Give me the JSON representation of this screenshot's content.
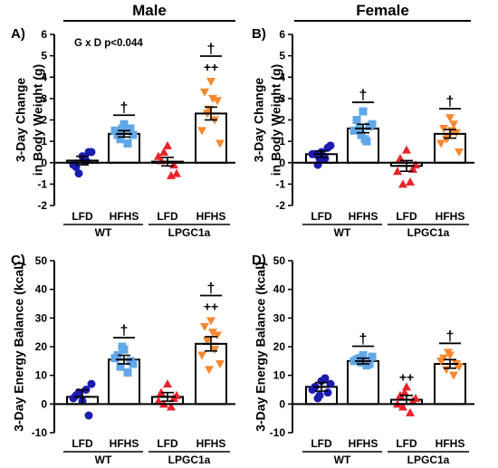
{
  "header": {
    "male": "Male",
    "female": "Female"
  },
  "style": {
    "colors": {
      "wt_lfd": "#1b1bb0",
      "wt_hfhs": "#62a8e8",
      "lpgc_lfd": "#e8232a",
      "lpgc_hfhs": "#f7882f"
    },
    "markers": {
      "wt_lfd": "circle",
      "wt_hfhs": "square",
      "lpgc_lfd": "triangle-up",
      "lpgc_hfhs": "triangle-down"
    }
  },
  "chart_data": [
    {
      "panel": "A)",
      "type": "bar",
      "ylabel": [
        "3-Day Change",
        "in Body Weight (g)"
      ],
      "ylim": [
        -2,
        6
      ],
      "yticks": [
        -2,
        -1,
        0,
        1,
        2,
        3,
        4,
        5,
        6
      ],
      "categories": [
        "LFD",
        "HFHS",
        "LFD",
        "HFHS"
      ],
      "groups": [
        "WT",
        "LPGC1a"
      ],
      "annotation": "G x D p<0.044",
      "values": [
        0.1,
        1.35,
        0.05,
        2.3
      ],
      "errors": [
        0.2,
        0.15,
        0.2,
        0.3
      ],
      "points": [
        [
          0.3,
          -0.2,
          0.5,
          -0.5,
          0.1,
          -0.1,
          0.5
        ],
        [
          1.8,
          1.3,
          1.6,
          1.1,
          0.9,
          1.5,
          1.3,
          1.6
        ],
        [
          0.8,
          0.1,
          -0.1,
          0.5,
          -0.6,
          0.3,
          -0.5
        ],
        [
          3.8,
          3.3,
          2.9,
          2.3,
          2.0,
          1.5,
          0.9,
          2.5,
          3.0
        ]
      ],
      "marks": [
        "",
        "†",
        "",
        "†\n++"
      ]
    },
    {
      "panel": "B)",
      "type": "bar",
      "ylabel": [
        "3-Day Change",
        "in Body Weight (g)"
      ],
      "ylim": [
        -2,
        6
      ],
      "yticks": [
        -2,
        -1,
        0,
        1,
        2,
        3,
        4,
        5,
        6
      ],
      "categories": [
        "LFD",
        "HFHS",
        "LFD",
        "HFHS"
      ],
      "groups": [
        "WT",
        "LPGC1a"
      ],
      "annotation": "",
      "values": [
        0.4,
        1.6,
        -0.15,
        1.35
      ],
      "errors": [
        0.15,
        0.2,
        0.25,
        0.2
      ],
      "points": [
        [
          0.5,
          0.4,
          0.7,
          -0.1,
          0.2,
          0.4,
          0.8,
          0.2
        ],
        [
          2.4,
          2.0,
          1.7,
          1.6,
          1.0,
          1.5,
          1.8,
          1.3,
          1.1
        ],
        [
          0.6,
          0.2,
          -0.3,
          -1.0,
          -0.9,
          -0.4,
          -0.1
        ],
        [
          2.1,
          1.6,
          1.4,
          1.1,
          1.8,
          0.9,
          0.5,
          1.2,
          1.5
        ]
      ],
      "marks": [
        "",
        "†",
        "",
        "†"
      ]
    },
    {
      "panel": "C)",
      "type": "bar",
      "ylabel": [
        "3-Day Energy Balance (kcal)"
      ],
      "ylim": [
        -10,
        50
      ],
      "yticks": [
        -10,
        0,
        10,
        20,
        30,
        40,
        50
      ],
      "categories": [
        "LFD",
        "HFHS",
        "LFD",
        "HFHS"
      ],
      "groups": [
        "WT",
        "LPGC1a"
      ],
      "annotation": "",
      "values": [
        2.5,
        15.5,
        2.5,
        21.0
      ],
      "errors": [
        2.5,
        1.5,
        1.5,
        2.5
      ],
      "points": [
        [
          1.0,
          3.0,
          -4.0,
          4.0,
          5.0,
          2.0,
          7.0
        ],
        [
          19.0,
          17.0,
          15.0,
          13.0,
          11.0,
          16.0,
          14.0,
          20.0
        ],
        [
          7.0,
          4.0,
          2.0,
          0.0,
          -1.0,
          1.0,
          3.0
        ],
        [
          29.0,
          27.0,
          24.0,
          22.0,
          19.0,
          17.0,
          14.0,
          12.0,
          25.0
        ]
      ],
      "marks": [
        "",
        "†",
        "",
        "†\n++"
      ]
    },
    {
      "panel": "D)",
      "type": "bar",
      "ylabel": [
        "3-Day Energy Balance (kcal)"
      ],
      "ylim": [
        -10,
        50
      ],
      "yticks": [
        -10,
        0,
        10,
        20,
        30,
        40,
        50
      ],
      "categories": [
        "LFD",
        "HFHS",
        "LFD",
        "HFHS"
      ],
      "groups": [
        "WT",
        "LPGC1a"
      ],
      "annotation": "",
      "values": [
        6.0,
        15.0,
        1.5,
        14.0
      ],
      "errors": [
        1.5,
        1.0,
        1.5,
        1.5
      ],
      "points": [
        [
          8.0,
          6.0,
          4.0,
          2.0,
          9.0,
          5.0,
          7.0,
          3.0
        ],
        [
          17.0,
          15.5,
          14.0,
          16.0,
          13.5,
          15.0,
          16.5,
          14.5
        ],
        [
          6.0,
          3.0,
          1.0,
          -1.0,
          -3.0,
          0.0,
          2.0,
          4.0
        ],
        [
          17.0,
          16.0,
          14.0,
          12.0,
          10.0,
          15.0,
          13.0,
          18.0
        ]
      ],
      "marks": [
        "",
        "†",
        "++",
        "†"
      ]
    }
  ]
}
